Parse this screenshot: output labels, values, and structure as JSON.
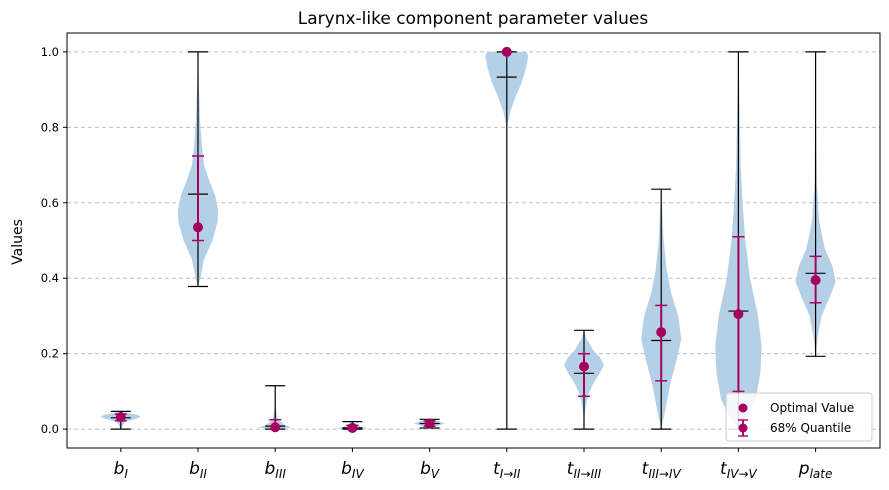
{
  "chart_data": {
    "type": "violin",
    "title": "Larynx-like component parameter values",
    "xlabel": "",
    "ylabel": "Values",
    "ylim": [
      -0.05,
      1.05
    ],
    "yticks": [
      0.0,
      0.2,
      0.4,
      0.6,
      0.8,
      1.0
    ],
    "ytick_labels": [
      "0.0",
      "0.2",
      "0.4",
      "0.6",
      "0.8",
      "1.0"
    ],
    "grid": "y-dashed",
    "legend_position": "lower-right",
    "legend": [
      {
        "label": "Optimal Value",
        "marker": "dot"
      },
      {
        "label": "68% Quantile",
        "marker": "errorbar"
      }
    ],
    "colors": {
      "violin": "#b4d0e7",
      "marker": "#a6005f",
      "whisker": "#000000",
      "grid": "#c0c0c0"
    },
    "categories": [
      {
        "base": "b",
        "sub": "I",
        "min": 0.0,
        "max": 0.047,
        "median": 0.03,
        "optimal": 0.032,
        "q_low": 0.022,
        "q_high": 0.04,
        "violin": [
          [
            0.0,
            0.0
          ],
          [
            0.02,
            0.2
          ],
          [
            0.028,
            0.8
          ],
          [
            0.033,
            1.0
          ],
          [
            0.038,
            0.8
          ],
          [
            0.044,
            0.2
          ],
          [
            0.047,
            0.0
          ]
        ],
        "vwidth": 0.26
      },
      {
        "base": "b",
        "sub": "II",
        "min": 0.378,
        "max": 1.0,
        "median": 0.623,
        "optimal": 0.535,
        "q_low": 0.5,
        "q_high": 0.724,
        "violin": [
          [
            0.378,
            0.0
          ],
          [
            0.4,
            0.12
          ],
          [
            0.45,
            0.3
          ],
          [
            0.5,
            0.72
          ],
          [
            0.55,
            0.98
          ],
          [
            0.58,
            1.0
          ],
          [
            0.62,
            0.85
          ],
          [
            0.66,
            0.55
          ],
          [
            0.7,
            0.3
          ],
          [
            0.76,
            0.18
          ],
          [
            0.82,
            0.1
          ],
          [
            0.9,
            0.05
          ],
          [
            1.0,
            0.0
          ]
        ],
        "vwidth": 0.26
      },
      {
        "base": "b",
        "sub": "III",
        "min": 0.0,
        "max": 0.115,
        "median": 0.008,
        "optimal": 0.005,
        "q_low": 0.0,
        "q_high": 0.025,
        "violin": [
          [
            0.0,
            0.0
          ],
          [
            0.004,
            1.0
          ],
          [
            0.01,
            0.6
          ],
          [
            0.025,
            0.15
          ],
          [
            0.06,
            0.03
          ],
          [
            0.115,
            0.0
          ]
        ],
        "vwidth": 0.22
      },
      {
        "base": "b",
        "sub": "IV",
        "min": 0.0,
        "max": 0.02,
        "median": 0.003,
        "optimal": 0.003,
        "q_low": 0.0,
        "q_high": 0.01,
        "violin": [
          [
            0.0,
            0.0
          ],
          [
            0.002,
            1.0
          ],
          [
            0.008,
            0.5
          ],
          [
            0.02,
            0.0
          ]
        ],
        "vwidth": 0.2
      },
      {
        "base": "b",
        "sub": "V",
        "min": 0.003,
        "max": 0.026,
        "median": 0.015,
        "optimal": 0.015,
        "q_low": 0.008,
        "q_high": 0.022,
        "violin": [
          [
            0.003,
            0.0
          ],
          [
            0.01,
            0.6
          ],
          [
            0.015,
            1.0
          ],
          [
            0.021,
            0.6
          ],
          [
            0.026,
            0.0
          ]
        ],
        "vwidth": 0.2
      },
      {
        "base": "t",
        "sub": "I→II",
        "min": 0.0,
        "max": 1.0,
        "median": 0.933,
        "optimal": 1.0,
        "q_low": 1.0,
        "q_high": 1.0,
        "violin": [
          [
            0.8,
            0.0
          ],
          [
            0.84,
            0.15
          ],
          [
            0.88,
            0.4
          ],
          [
            0.92,
            0.7
          ],
          [
            0.96,
            0.9
          ],
          [
            0.99,
            1.0
          ],
          [
            1.0,
            0.9
          ]
        ],
        "vwidth": 0.28
      },
      {
        "base": "t",
        "sub": "II→III",
        "min": 0.0,
        "max": 0.262,
        "median": 0.148,
        "optimal": 0.166,
        "q_low": 0.087,
        "q_high": 0.2,
        "violin": [
          [
            0.0,
            0.0
          ],
          [
            0.05,
            0.05
          ],
          [
            0.09,
            0.2
          ],
          [
            0.12,
            0.45
          ],
          [
            0.15,
            0.8
          ],
          [
            0.17,
            1.0
          ],
          [
            0.19,
            0.8
          ],
          [
            0.21,
            0.45
          ],
          [
            0.24,
            0.12
          ],
          [
            0.262,
            0.0
          ]
        ],
        "vwidth": 0.26
      },
      {
        "base": "t",
        "sub": "III→IV",
        "min": 0.0,
        "max": 0.636,
        "median": 0.235,
        "optimal": 0.257,
        "q_low": 0.128,
        "q_high": 0.328,
        "violin": [
          [
            0.0,
            0.0
          ],
          [
            0.05,
            0.2
          ],
          [
            0.12,
            0.45
          ],
          [
            0.18,
            0.75
          ],
          [
            0.24,
            1.0
          ],
          [
            0.3,
            0.85
          ],
          [
            0.36,
            0.5
          ],
          [
            0.42,
            0.28
          ],
          [
            0.5,
            0.12
          ],
          [
            0.636,
            0.0
          ]
        ],
        "vwidth": 0.26
      },
      {
        "base": "t",
        "sub": "IV→V",
        "min": 0.0,
        "max": 1.0,
        "median": 0.313,
        "optimal": 0.305,
        "q_low": 0.1,
        "q_high": 0.51,
        "violin": [
          [
            0.0,
            0.0
          ],
          [
            0.03,
            0.35
          ],
          [
            0.08,
            0.75
          ],
          [
            0.15,
            0.95
          ],
          [
            0.22,
            1.0
          ],
          [
            0.3,
            0.85
          ],
          [
            0.4,
            0.5
          ],
          [
            0.5,
            0.3
          ],
          [
            0.6,
            0.18
          ],
          [
            0.7,
            0.1
          ],
          [
            0.85,
            0.05
          ],
          [
            1.0,
            0.0
          ]
        ],
        "vwidth": 0.3
      },
      {
        "base": "p",
        "sub": "late",
        "min": 0.193,
        "max": 1.0,
        "median": 0.413,
        "optimal": 0.395,
        "q_low": 0.335,
        "q_high": 0.458,
        "violin": [
          [
            0.193,
            0.0
          ],
          [
            0.25,
            0.12
          ],
          [
            0.3,
            0.3
          ],
          [
            0.35,
            0.7
          ],
          [
            0.39,
            1.0
          ],
          [
            0.43,
            0.85
          ],
          [
            0.48,
            0.45
          ],
          [
            0.55,
            0.18
          ],
          [
            0.65,
            0.06
          ],
          [
            0.8,
            0.02
          ],
          [
            1.0,
            0.0
          ]
        ],
        "vwidth": 0.26
      }
    ]
  }
}
